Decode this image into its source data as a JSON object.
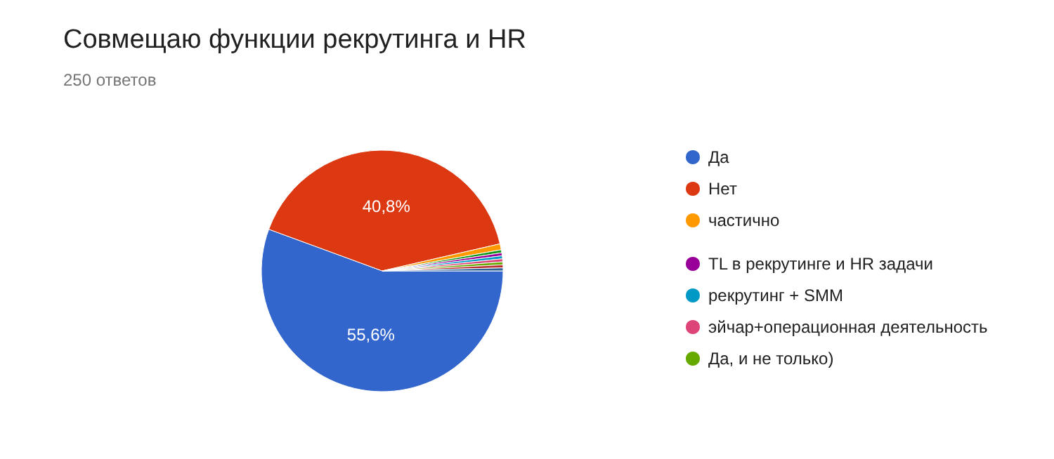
{
  "chart_data": {
    "type": "pie",
    "title": "Совмещаю функции рекрутинга и HR",
    "subtitle": "250 ответов",
    "categories": [
      "Да",
      "Нет",
      "частично",
      null,
      "TL в рекрутинге и HR задачи",
      "рекрутинг + SMM",
      "эйчар+операционная деятельность",
      "Да, и не только)",
      null,
      null
    ],
    "values": [
      55.6,
      40.8,
      0.8,
      0.4,
      0.4,
      0.4,
      0.4,
      0.4,
      0.4,
      0.4
    ],
    "colors": [
      "#3366cc",
      "#dc3912",
      "#ff9900",
      "#109618",
      "#990099",
      "#0099c6",
      "#dd4477",
      "#66aa00",
      "#b82e2e",
      "#316395"
    ],
    "value_labels": [
      "55,6%",
      "40,8%",
      null,
      null,
      null,
      null,
      null,
      null,
      null,
      null
    ],
    "legend": "right"
  }
}
